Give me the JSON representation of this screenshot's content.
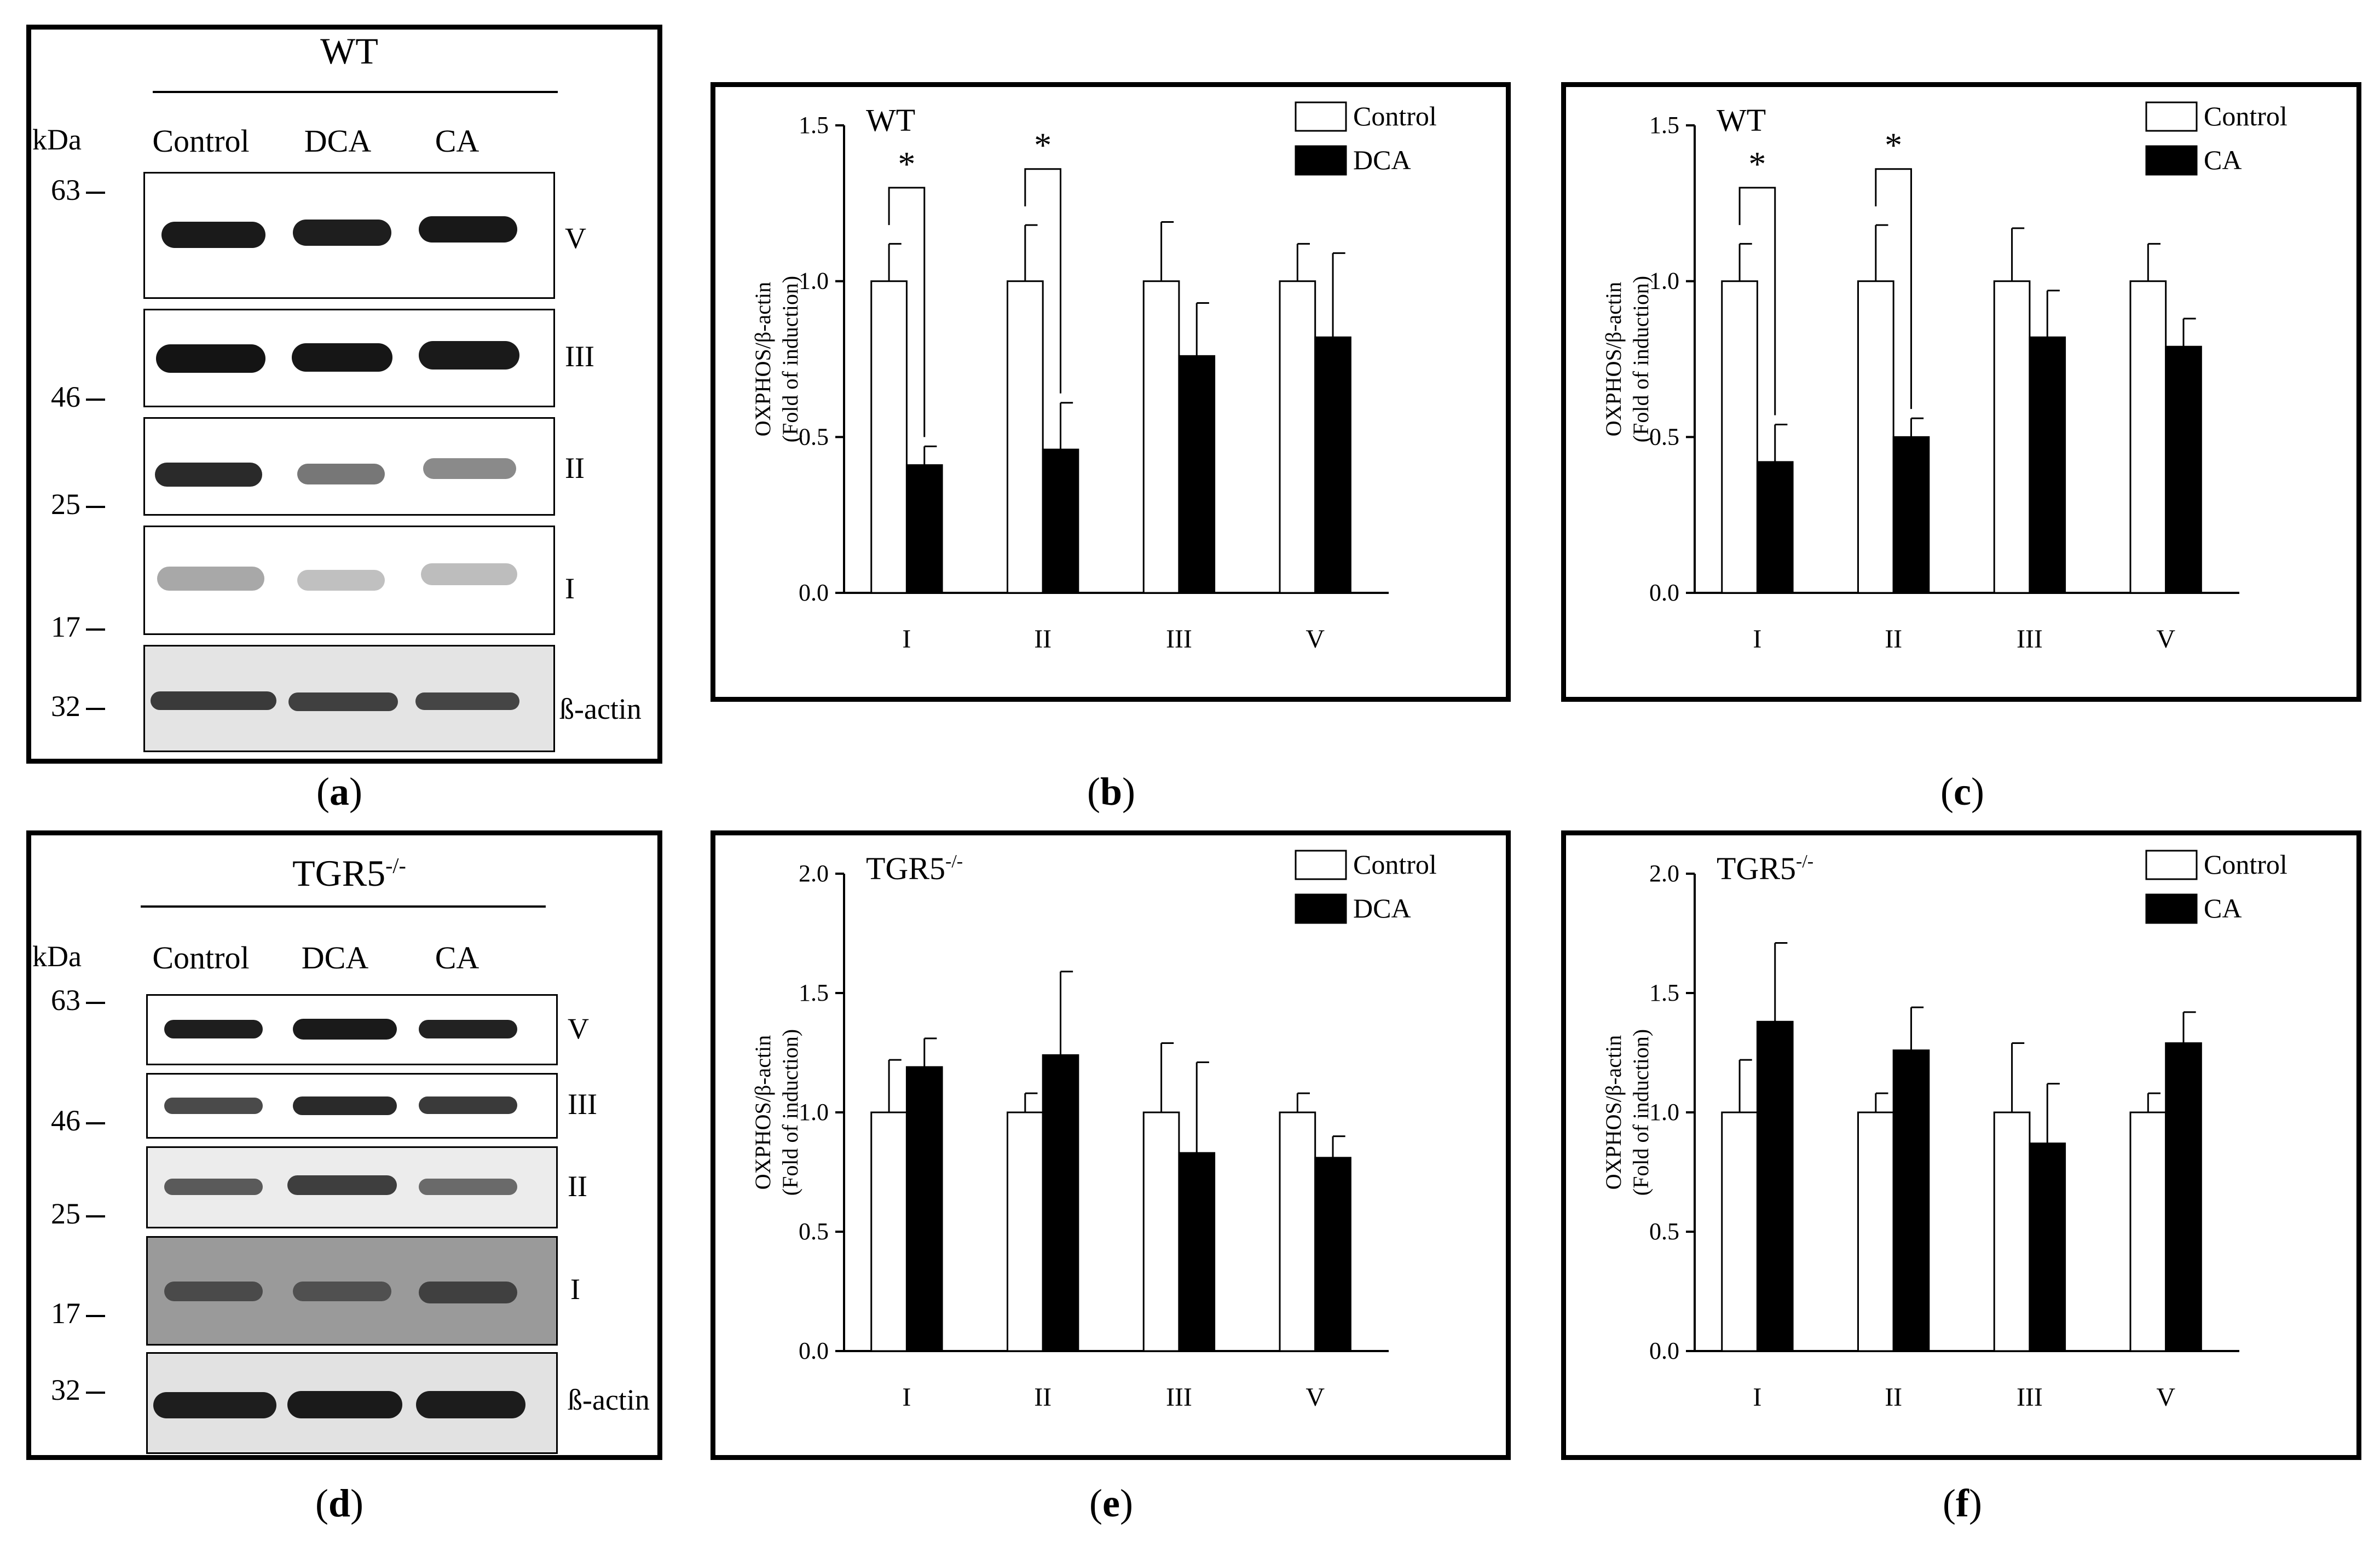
{
  "panels": [
    {
      "id": "a",
      "letter": "a",
      "type": "blot",
      "title": "WT",
      "title_sup": "",
      "kda": "kDa",
      "lanes": [
        "Control",
        "DCA",
        "CA"
      ],
      "markers": [
        "63",
        "46",
        "25",
        "17",
        "32"
      ],
      "bands": [
        "V",
        "III",
        "II",
        "I",
        "ß-actin"
      ]
    },
    {
      "id": "b",
      "letter": "b",
      "type": "chart"
    },
    {
      "id": "c",
      "letter": "c",
      "type": "chart"
    },
    {
      "id": "d",
      "letter": "d",
      "type": "blot",
      "title": "TGR5",
      "title_sup": "-/-",
      "kda": "kDa",
      "lanes": [
        "Control",
        "DCA",
        "CA"
      ],
      "markers": [
        "63",
        "46",
        "25",
        "17",
        "32"
      ],
      "bands": [
        "V",
        "III",
        "II",
        "I",
        "ß-actin"
      ]
    },
    {
      "id": "e",
      "letter": "e",
      "type": "chart"
    },
    {
      "id": "f",
      "letter": "f",
      "type": "chart"
    }
  ],
  "chart_data": [
    {
      "panel": "b",
      "type": "bar",
      "title": "WT",
      "title_sup": "",
      "categories": [
        "I",
        "II",
        "III",
        "V"
      ],
      "series": [
        {
          "name": "Control",
          "color": "#ffffff",
          "values": [
            1.0,
            1.0,
            1.0,
            1.0
          ],
          "errors": [
            0.12,
            0.18,
            0.19,
            0.12
          ]
        },
        {
          "name": "DCA",
          "color": "#000000",
          "values": [
            0.41,
            0.46,
            0.76,
            0.82
          ],
          "errors": [
            0.06,
            0.15,
            0.17,
            0.27
          ]
        }
      ],
      "ylabel": "OXPHOS/β-actin\n(Fold of induction)",
      "ylim": [
        0,
        1.5
      ],
      "yticks": [
        "0.0",
        "0.5",
        "1.0",
        "1.5"
      ],
      "significance": [
        {
          "category": "I",
          "label": "*"
        },
        {
          "category": "II",
          "label": "*"
        }
      ]
    },
    {
      "panel": "c",
      "type": "bar",
      "title": "WT",
      "title_sup": "",
      "categories": [
        "I",
        "II",
        "III",
        "V"
      ],
      "series": [
        {
          "name": "Control",
          "color": "#ffffff",
          "values": [
            1.0,
            1.0,
            1.0,
            1.0
          ],
          "errors": [
            0.12,
            0.18,
            0.17,
            0.12
          ]
        },
        {
          "name": "CA",
          "color": "#000000",
          "values": [
            0.42,
            0.5,
            0.82,
            0.79
          ],
          "errors": [
            0.12,
            0.06,
            0.15,
            0.09
          ]
        }
      ],
      "ylabel": "OXPHOS/β-actin\n(Fold of induction)",
      "ylim": [
        0,
        1.5
      ],
      "yticks": [
        "0.0",
        "0.5",
        "1.0",
        "1.5"
      ],
      "significance": [
        {
          "category": "I",
          "label": "*"
        },
        {
          "category": "II",
          "label": "*"
        }
      ]
    },
    {
      "panel": "e",
      "type": "bar",
      "title": "TGR5",
      "title_sup": "-/-",
      "categories": [
        "I",
        "II",
        "III",
        "V"
      ],
      "series": [
        {
          "name": "Control",
          "color": "#ffffff",
          "values": [
            1.0,
            1.0,
            1.0,
            1.0
          ],
          "errors": [
            0.22,
            0.08,
            0.29,
            0.08
          ]
        },
        {
          "name": "DCA",
          "color": "#000000",
          "values": [
            1.19,
            1.24,
            0.83,
            0.81
          ],
          "errors": [
            0.12,
            0.35,
            0.38,
            0.09
          ]
        }
      ],
      "ylabel": "OXPHOS/β-actin\n(Fold of induction)",
      "ylim": [
        0,
        2.0
      ],
      "yticks": [
        "0.0",
        "0.5",
        "1.0",
        "1.5",
        "2.0"
      ],
      "significance": []
    },
    {
      "panel": "f",
      "type": "bar",
      "title": "TGR5",
      "title_sup": "-/-",
      "categories": [
        "I",
        "II",
        "III",
        "V"
      ],
      "series": [
        {
          "name": "Control",
          "color": "#ffffff",
          "values": [
            1.0,
            1.0,
            1.0,
            1.0
          ],
          "errors": [
            0.22,
            0.08,
            0.29,
            0.08
          ]
        },
        {
          "name": "CA",
          "color": "#000000",
          "values": [
            1.38,
            1.26,
            0.87,
            1.29
          ],
          "errors": [
            0.33,
            0.18,
            0.25,
            0.13
          ]
        }
      ],
      "ylabel": "OXPHOS/β-actin\n(Fold of induction)",
      "ylim": [
        0,
        2.0
      ],
      "yticks": [
        "0.0",
        "0.5",
        "1.0",
        "1.5",
        "2.0"
      ],
      "significance": []
    }
  ]
}
